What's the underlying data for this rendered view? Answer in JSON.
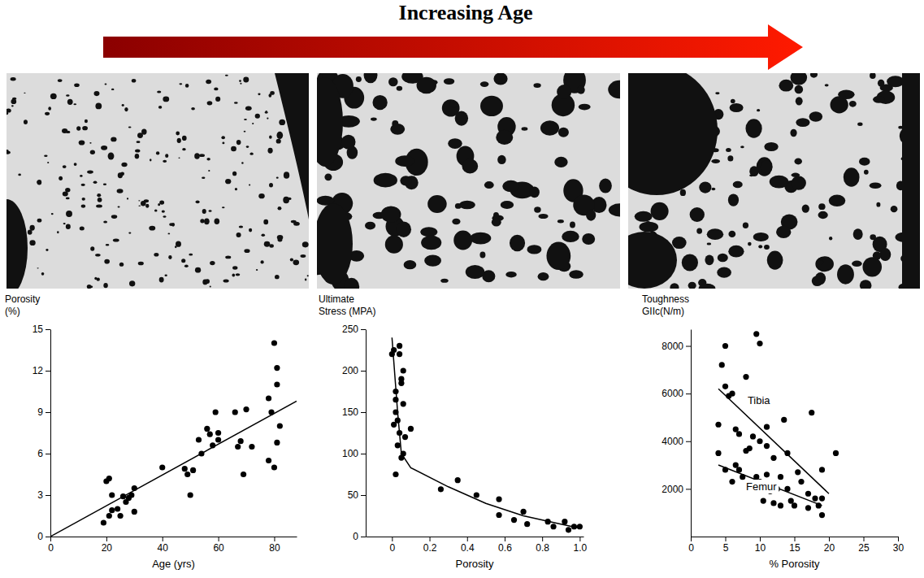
{
  "title": "Increasing Age",
  "chart_data": [
    {
      "type": "scatter",
      "x_label": "Age (yrs)",
      "y_label": "Porosity (%)",
      "xlim": [
        0,
        88
      ],
      "ylim": [
        0,
        15
      ],
      "xticks": [
        0,
        20,
        40,
        60,
        80
      ],
      "yticks": [
        0,
        3,
        6,
        9,
        12,
        15
      ],
      "series": [
        {
          "type": "scatter",
          "marker": "circle",
          "color": "#000000",
          "x": [
            19,
            20,
            21,
            21,
            22,
            22,
            24,
            25,
            26,
            27,
            28,
            29,
            30,
            30,
            40,
            48,
            49,
            50,
            51,
            53,
            54,
            56,
            57,
            58,
            59,
            60,
            60,
            66,
            67,
            68,
            69,
            70,
            72,
            78,
            78,
            79,
            80,
            80,
            81,
            81,
            81,
            82
          ],
          "values": [
            1.0,
            4.0,
            4.2,
            1.5,
            1.9,
            3.0,
            2.0,
            1.5,
            2.9,
            2.5,
            2.8,
            3.0,
            3.5,
            1.8,
            5.0,
            4.9,
            4.5,
            3.0,
            4.8,
            7.0,
            6.0,
            7.8,
            7.4,
            6.6,
            9.0,
            7.5,
            7.0,
            9.0,
            6.5,
            6.9,
            4.5,
            9.2,
            6.5,
            10.0,
            5.5,
            9.0,
            5.0,
            14.0,
            12.2,
            11.0,
            6.8,
            8.0
          ]
        },
        {
          "type": "line",
          "line_style": "solid",
          "color": "#000000",
          "x": [
            0,
            88
          ],
          "values": [
            0,
            9.8
          ]
        }
      ]
    },
    {
      "type": "scatter",
      "x_label": "Porosity",
      "y_label": "Ultimate Stress (MPA)",
      "xlim": [
        -0.14,
        1.02
      ],
      "ylim": [
        0,
        250
      ],
      "xticks": [
        0,
        0.2,
        0.4,
        0.6,
        0.8,
        {
          "value": 1.0,
          "label": "1.0"
        }
      ],
      "yticks": [
        0,
        50,
        100,
        150,
        200,
        250
      ],
      "series": [
        {
          "type": "scatter",
          "marker": "circle",
          "color": "#000000",
          "x": [
            0,
            0.01,
            0.01,
            0.02,
            0.02,
            0.02,
            0.03,
            0.03,
            0.04,
            0.04,
            0.04,
            0.05,
            0.05,
            0.06,
            0.06,
            0.07,
            0.1,
            0.02,
            0.05,
            0.06,
            0.26,
            0.35,
            0.45,
            0.57,
            0.57,
            0.65,
            0.7,
            0.72,
            0.83,
            0.86,
            0.92,
            0.94,
            0.97,
            1.0
          ],
          "values": [
            220,
            135,
            225,
            175,
            150,
            165,
            110,
            140,
            125,
            230,
            220,
            190,
            185,
            160,
            200,
            120,
            130,
            75,
            95,
            100,
            57,
            68,
            50,
            45,
            26,
            20,
            30,
            15,
            18,
            12,
            18,
            8,
            12,
            12
          ]
        },
        {
          "type": "line",
          "line_style": "solid",
          "color": "#000000",
          "x": [
            0,
            0.03,
            0.05,
            0.1,
            0.3,
            0.5,
            0.7,
            0.9,
            1.0
          ],
          "values": [
            240,
            150,
            100,
            83,
            60,
            40,
            25,
            15,
            10
          ]
        }
      ]
    },
    {
      "type": "scatter",
      "x_label": "% Porosity",
      "y_label": "Toughness GIIc(N/m)",
      "xlim": [
        0,
        30
      ],
      "ylim": [
        0,
        8700
      ],
      "xticks": [
        0,
        5,
        10,
        15,
        20,
        25,
        30
      ],
      "yticks": [
        2000,
        4000,
        6000,
        8000
      ],
      "series": [
        {
          "type": "scatter",
          "marker": "circle",
          "color": "#000000",
          "x": [
            4,
            4.5,
            5,
            5,
            5.5,
            6,
            4,
            5,
            6,
            6.5,
            6.5,
            7,
            7,
            7.5,
            8,
            8,
            8.5,
            9,
            9,
            9.5,
            9.5,
            10,
            10,
            10,
            10.5,
            10.5,
            11,
            11,
            11,
            11.5,
            12,
            12,
            12.5,
            13,
            13,
            13.5,
            14,
            14,
            14.5,
            15,
            15.5,
            16,
            17,
            17,
            17.5,
            18,
            18.5,
            19,
            19,
            19,
            21
          ],
          "values": [
            4700,
            7200,
            6300,
            8000,
            5900,
            6000,
            3500,
            2800,
            2300,
            4500,
            3000,
            4300,
            2800,
            2500,
            6700,
            3600,
            3700,
            4200,
            2000,
            8500,
            2500,
            8100,
            4000,
            2300,
            2000,
            1500,
            4600,
            3800,
            2600,
            1900,
            1400,
            3300,
            2000,
            2500,
            1300,
            4900,
            3500,
            2000,
            1500,
            1300,
            2700,
            2300,
            1800,
            1200,
            5200,
            1600,
            1300,
            2800,
            900,
            1600,
            3500
          ]
        },
        {
          "name": "Tibia",
          "type": "line",
          "line_style": "solid",
          "color": "#000000",
          "x": [
            4,
            20
          ],
          "values": [
            6200,
            1800
          ]
        },
        {
          "name": "Femur",
          "type": "line",
          "line_style": "solid",
          "color": "#000000",
          "x": [
            4,
            19
          ],
          "values": [
            3000,
            1300
          ]
        }
      ]
    }
  ]
}
